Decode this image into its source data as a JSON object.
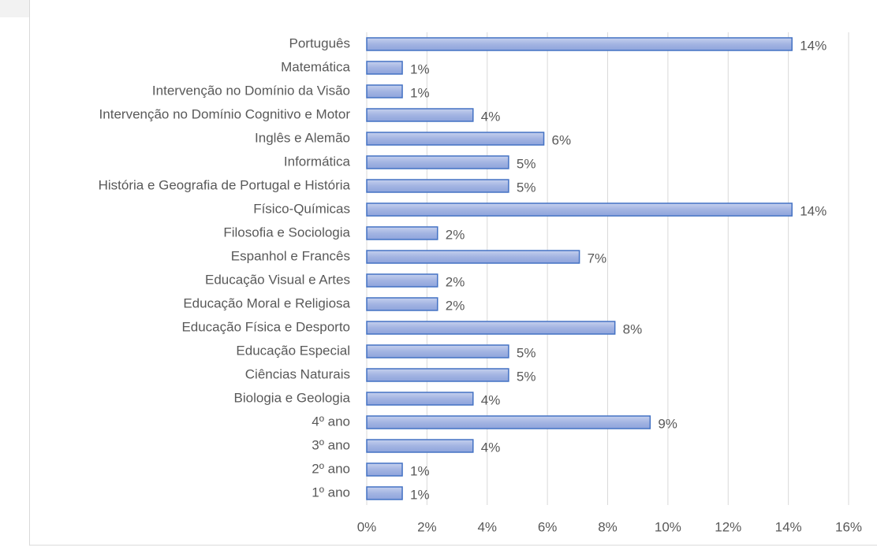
{
  "chart_data": {
    "type": "barh",
    "categories": [
      "Português",
      "Matemática",
      "Intervenção no Domínio da Visão",
      "Intervenção no Domínio Cognitivo e Motor",
      "Inglês e Alemão",
      "Informática",
      "História e Geografia de Portugal e História",
      "Físico-Químicas",
      "Filosofia e Sociologia",
      "Espanhol e Francês",
      "Educação Visual e Artes",
      "Educação Moral e Religiosa",
      "Educação Física e Desporto",
      "Educação Especial",
      "Ciências Naturais",
      "Biologia e Geologia",
      "4º ano",
      "3º ano",
      "2º ano",
      "1º ano"
    ],
    "values": [
      14.12,
      1.18,
      1.18,
      3.53,
      5.88,
      4.71,
      4.71,
      14.12,
      2.35,
      7.06,
      2.35,
      2.35,
      8.24,
      4.71,
      4.71,
      3.53,
      9.41,
      3.53,
      1.18,
      1.18
    ],
    "value_labels": [
      "14%",
      "1%",
      "1%",
      "4%",
      "6%",
      "5%",
      "5%",
      "14%",
      "2%",
      "7%",
      "2%",
      "2%",
      "8%",
      "5%",
      "5%",
      "4%",
      "9%",
      "4%",
      "1%",
      "1%"
    ],
    "color": "#4472c4",
    "xlim": [
      0,
      16
    ],
    "xticks": [
      {
        "value": 0,
        "label": "0%"
      },
      {
        "value": 2,
        "label": "2%"
      },
      {
        "value": 4,
        "label": "4%"
      },
      {
        "value": 6,
        "label": "6%"
      },
      {
        "value": 8,
        "label": "8%"
      },
      {
        "value": 10,
        "label": "10%"
      },
      {
        "value": 12,
        "label": "12%"
      },
      {
        "value": 14,
        "label": "14%"
      },
      {
        "value": 16,
        "label": "16%"
      }
    ],
    "grid": true
  }
}
